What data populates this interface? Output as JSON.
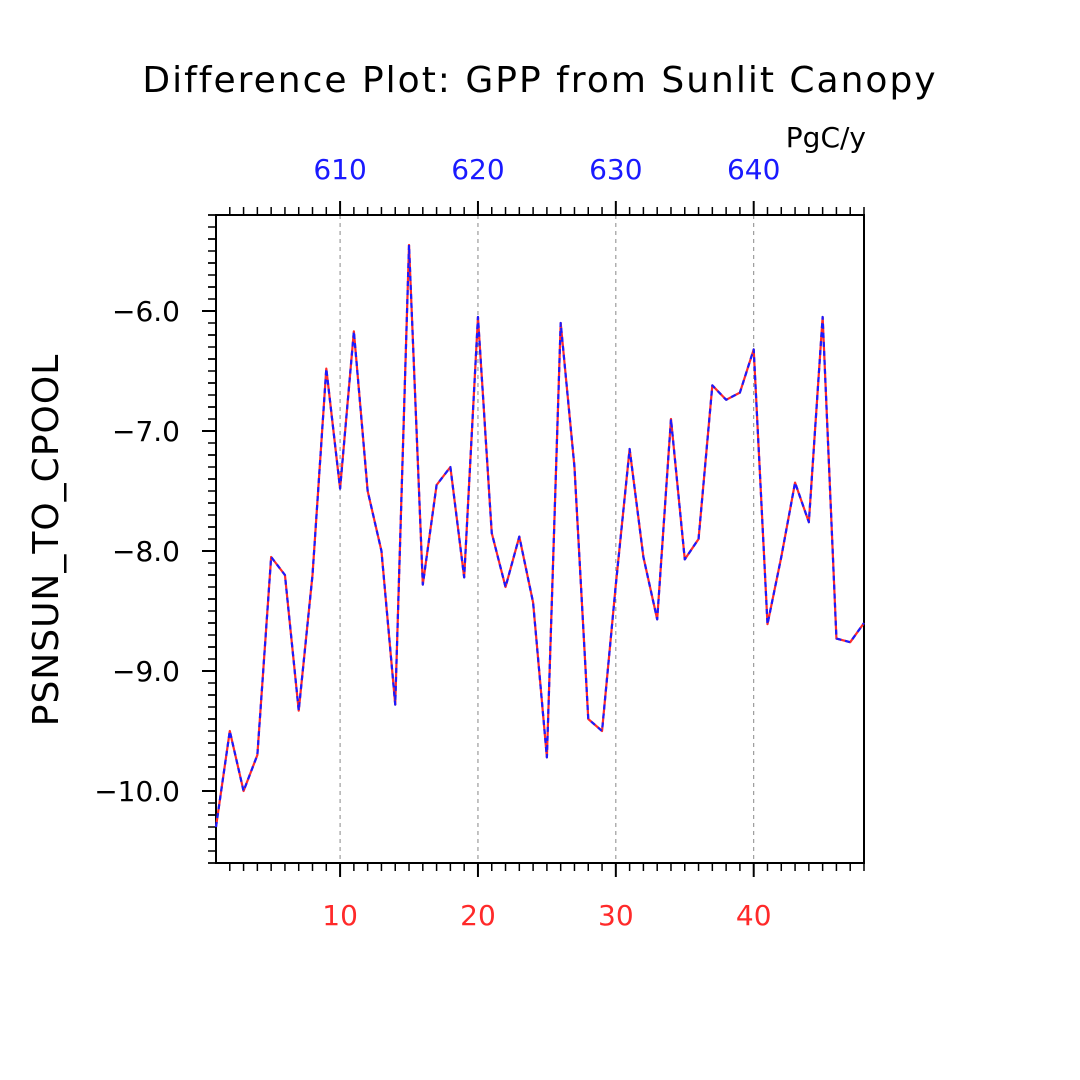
{
  "chart_data": {
    "type": "line",
    "title": "Difference Plot: GPP from Sunlit Canopy",
    "units": "PgC/y",
    "ylabel": "PSNSUN_TO_CPOOL",
    "xlabel": "",
    "xlim": [
      1,
      48
    ],
    "ylim": [
      -10.6,
      -5.2
    ],
    "yticks": [
      -10.0,
      -9.0,
      -8.0,
      -7.0,
      -6.0
    ],
    "ytick_labels": [
      "−10.0",
      "−9.0",
      "−8.0",
      "−7.0",
      "−6.0"
    ],
    "xticks_bottom": [
      10,
      20,
      30,
      40
    ],
    "xtick_labels_bottom": [
      "10",
      "20",
      "30",
      "40"
    ],
    "xticks_top": [
      10,
      20,
      30,
      40
    ],
    "xtick_labels_top": [
      "610",
      "620",
      "630",
      "640"
    ],
    "grid": "dashed vertical at major x ticks",
    "colors": {
      "bottom_axis_labels": "#ff2a2a",
      "top_axis_labels": "#1a1aff",
      "line_a": "#ff2a2a",
      "line_b": "#1a1aff"
    },
    "x": [
      1,
      2,
      3,
      4,
      5,
      6,
      7,
      8,
      9,
      10,
      11,
      12,
      13,
      14,
      15,
      16,
      17,
      18,
      19,
      20,
      21,
      22,
      23,
      24,
      25,
      26,
      27,
      28,
      29,
      30,
      31,
      32,
      33,
      34,
      35,
      36,
      37,
      38,
      39,
      40,
      41,
      42,
      43,
      44,
      45,
      46,
      47,
      48
    ],
    "series": [
      {
        "values": [
          -10.3,
          -9.5,
          -10.0,
          -9.7,
          -8.05,
          -8.2,
          -9.33,
          -8.2,
          -6.48,
          -7.48,
          -6.17,
          -7.5,
          -8.0,
          -9.28,
          -5.45,
          -8.28,
          -7.45,
          -7.3,
          -8.22,
          -6.05,
          -7.85,
          -8.3,
          -7.88,
          -8.43,
          -9.72,
          -6.1,
          -7.3,
          -9.4,
          -9.5,
          -8.28,
          -7.15,
          -8.05,
          -8.57,
          -6.9,
          -8.07,
          -7.9,
          -6.62,
          -6.74,
          -6.68,
          -6.32,
          -8.61,
          -8.05,
          -7.43,
          -7.76,
          -6.05,
          -8.73,
          -8.76,
          -8.6
        ]
      },
      {
        "values": [
          -10.3,
          -9.5,
          -10.0,
          -9.7,
          -8.05,
          -8.2,
          -9.33,
          -8.2,
          -6.48,
          -7.48,
          -6.17,
          -7.5,
          -8.0,
          -9.28,
          -5.45,
          -8.28,
          -7.45,
          -7.3,
          -8.22,
          -6.05,
          -7.85,
          -8.3,
          -7.88,
          -8.43,
          -9.72,
          -6.1,
          -7.3,
          -9.4,
          -9.5,
          -8.28,
          -7.15,
          -8.05,
          -8.57,
          -6.9,
          -8.07,
          -7.9,
          -6.62,
          -6.74,
          -6.68,
          -6.32,
          -8.61,
          -8.05,
          -7.43,
          -7.76,
          -6.05,
          -8.73,
          -8.76,
          -8.6
        ]
      }
    ]
  }
}
